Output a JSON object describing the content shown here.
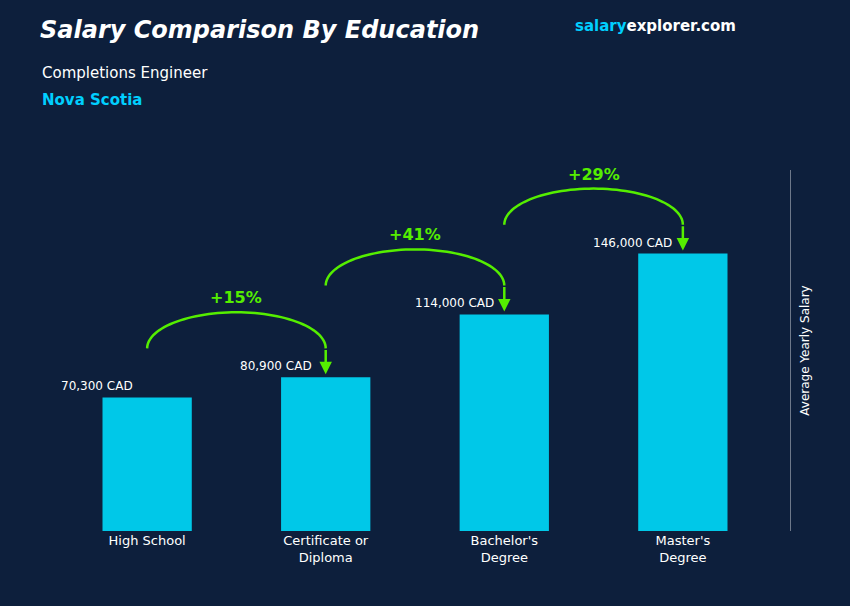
{
  "chart_data": {
    "type": "bar",
    "title": "Salary Comparison By Education",
    "title_color": "#ffffff",
    "subtitle": "Completions Engineer",
    "subtitle_color": "#ffffff",
    "location": {
      "text": "Nova Scotia",
      "color": "#00cfff"
    },
    "site": [
      {
        "text": "salary",
        "color": "#00cfff"
      },
      {
        "text": "explorer",
        "color": "#ffffff"
      },
      {
        "text": ".com",
        "color": "#ffffff"
      }
    ],
    "ylabel": "Average Yearly Salary",
    "categories": [
      "High School",
      "Certificate or\nDiploma",
      "Bachelor's\nDegree",
      "Master's\nDegree"
    ],
    "values": [
      70300,
      80900,
      114000,
      146000
    ],
    "value_labels": [
      "70,300 CAD",
      "80,900 CAD",
      "114,000 CAD",
      "146,000 CAD"
    ],
    "value_label_color": "#ffffff",
    "data_labels": true,
    "color": "#00c8e8",
    "ylim": [
      0,
      190000
    ],
    "tick_labels": "x",
    "grid": false,
    "changes": {
      "labels": [
        "+15%",
        "+41%",
        "+29%"
      ],
      "color": "#55ee00"
    },
    "background": "#0d1f3c"
  }
}
